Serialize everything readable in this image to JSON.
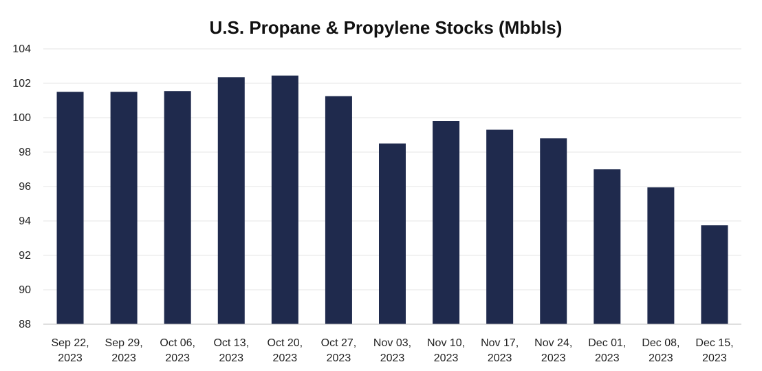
{
  "chart_data": {
    "type": "bar",
    "title": "U.S. Propane & Propylene Stocks (Mbbls)",
    "xlabel": "",
    "ylabel": "",
    "ylim": [
      88,
      104
    ],
    "yticks": [
      "88",
      "90",
      "92",
      "94",
      "96",
      "98",
      "100",
      "102",
      "104"
    ],
    "grid": true,
    "bar_color": "#1f2a4d",
    "categories": [
      [
        "Sep 22,",
        "2023"
      ],
      [
        "Sep 29,",
        "2023"
      ],
      [
        "Oct 06,",
        "2023"
      ],
      [
        "Oct 13,",
        "2023"
      ],
      [
        "Oct 20,",
        "2023"
      ],
      [
        "Oct 27,",
        "2023"
      ],
      [
        "Nov 03,",
        "2023"
      ],
      [
        "Nov 10,",
        "2023"
      ],
      [
        "Nov 17,",
        "2023"
      ],
      [
        "Nov 24,",
        "2023"
      ],
      [
        "Dec 01,",
        "2023"
      ],
      [
        "Dec 08,",
        "2023"
      ],
      [
        "Dec 15,",
        "2023"
      ]
    ],
    "values": [
      101.5,
      101.5,
      101.55,
      102.35,
      102.45,
      101.25,
      98.5,
      99.8,
      99.3,
      98.8,
      97.0,
      95.95,
      93.75
    ]
  }
}
